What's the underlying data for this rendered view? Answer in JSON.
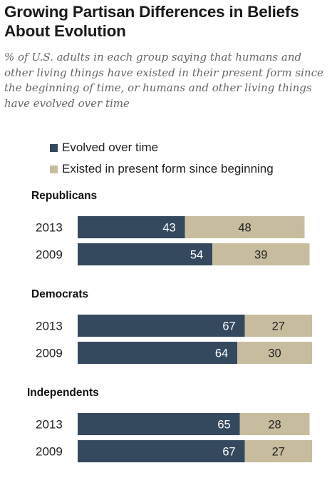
{
  "title": "Growing Partisan Differences in Beliefs About Evolution",
  "subtitle": "% of U.S. adults in each group saying that humans and other living things have existed in their present form since the beginning of time, or humans and other living things have evolved over time",
  "colors": {
    "evolved": "#34495e",
    "existed": "#c7bc9e"
  },
  "chart_data": {
    "type": "bar",
    "orientation": "horizontal",
    "stacked": true,
    "xlim": [
      0,
      100
    ],
    "legend_position": "top-left",
    "series": [
      {
        "name": "Evolved over time"
      },
      {
        "name": "Existed in present form since beginning"
      }
    ],
    "groups": [
      {
        "label": "Republicans",
        "rows": [
          {
            "year": "2013",
            "values": [
              43,
              48
            ]
          },
          {
            "year": "2009",
            "values": [
              54,
              39
            ]
          }
        ]
      },
      {
        "label": "Democrats",
        "rows": [
          {
            "year": "2013",
            "values": [
              67,
              27
            ]
          },
          {
            "year": "2009",
            "values": [
              64,
              30
            ]
          }
        ]
      },
      {
        "label": "Independents",
        "rows": [
          {
            "year": "2013",
            "values": [
              65,
              28
            ]
          },
          {
            "year": "2009",
            "values": [
              67,
              27
            ]
          }
        ]
      }
    ]
  }
}
